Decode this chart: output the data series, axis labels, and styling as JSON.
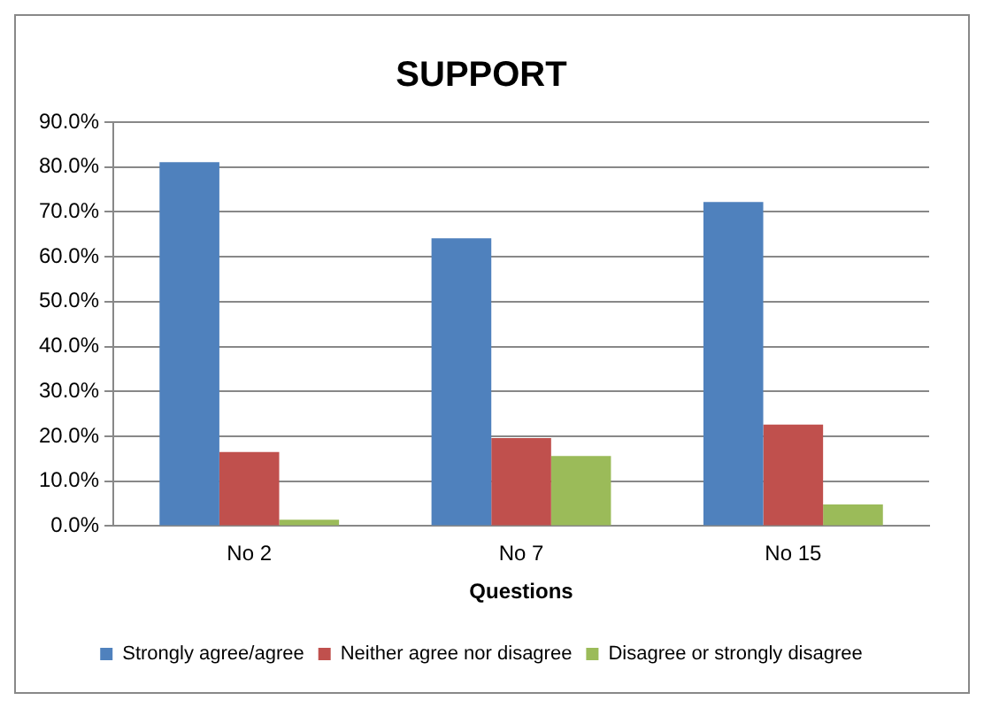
{
  "chart_data": {
    "type": "bar",
    "title": "SUPPORT",
    "xlabel": "Questions",
    "categories": [
      "No 2",
      "No 7",
      "No 15"
    ],
    "series": [
      {
        "name": "Strongly agree/agree",
        "color": "#4f81bd",
        "values": [
          81.1,
          64.1,
          72.2
        ]
      },
      {
        "name": "Neither agree nor disagree",
        "color": "#c0504d",
        "values": [
          16.5,
          19.6,
          22.6
        ]
      },
      {
        "name": "Disagree or strongly disagree",
        "color": "#9bbb59",
        "values": [
          1.4,
          15.6,
          4.8
        ]
      }
    ],
    "ylim": [
      0,
      90
    ],
    "yticks": [
      {
        "value": 0,
        "label": "0.0%"
      },
      {
        "value": 10,
        "label": "10.0%"
      },
      {
        "value": 20,
        "label": "20.0%"
      },
      {
        "value": 30,
        "label": "30.0%"
      },
      {
        "value": 40,
        "label": "40.0%"
      },
      {
        "value": 50,
        "label": "50.0%"
      },
      {
        "value": 60,
        "label": "60.0%"
      },
      {
        "value": 70,
        "label": "70.0%"
      },
      {
        "value": 80,
        "label": "80.0%"
      },
      {
        "value": 90,
        "label": "90.0%"
      }
    ],
    "grid": "y",
    "legend": "bottom"
  }
}
